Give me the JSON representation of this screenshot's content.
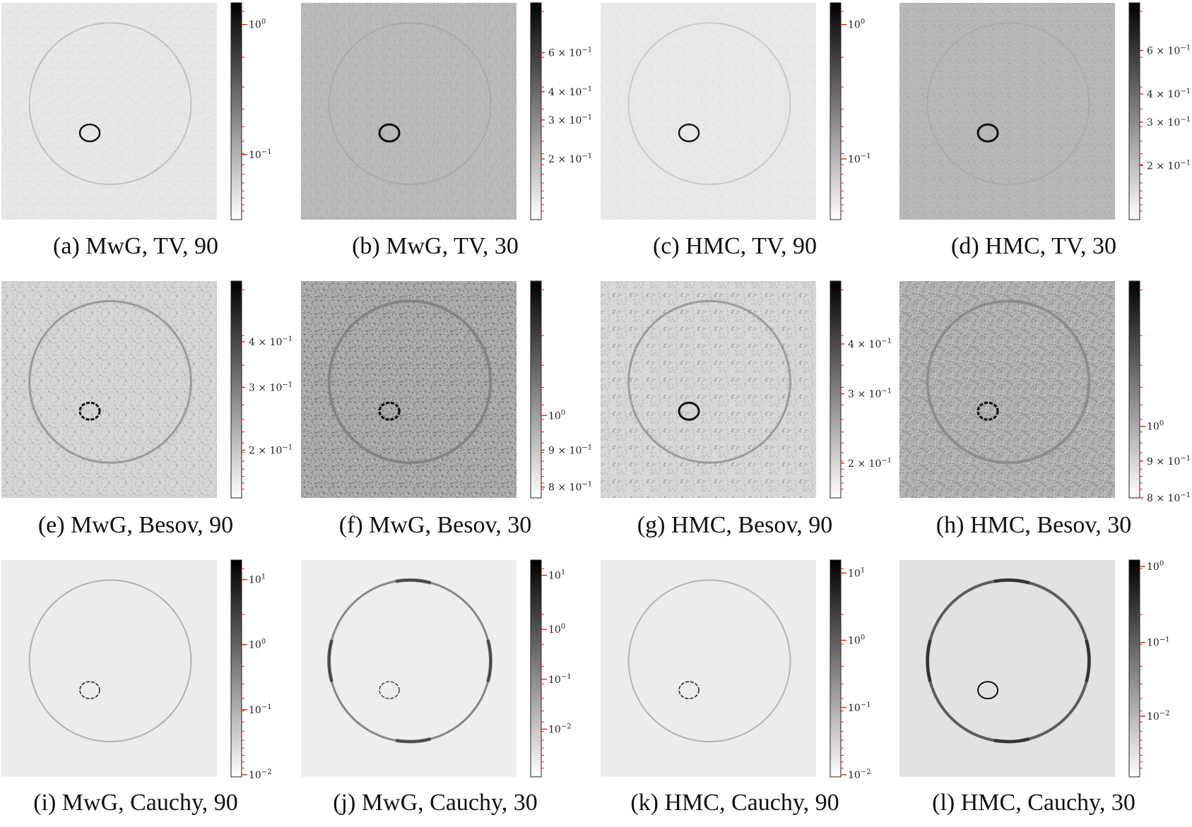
{
  "figure": {
    "panels": [
      {
        "label": "(a)",
        "caption": "(a) MwG, TV, 90",
        "background": "#e7e7e7",
        "noise": 0.03,
        "outer_ring_shade": "#b8b8b8",
        "outer_ring_width": 2,
        "inner_ring_shade": "#111111",
        "inner_ring_width": 2.4,
        "dashed_inner": false,
        "edge_arcs": false,
        "colorbar": {
          "scale": "log",
          "ticks": [
            {
              "label": "10^0",
              "frac": 0.9,
              "major": true
            },
            {
              "label": "10^-1",
              "frac": 0.3,
              "major": true
            }
          ]
        }
      },
      {
        "label": "(b)",
        "caption": "(b) MwG, TV, 30",
        "background": "#b9b9b9",
        "noise": 0.06,
        "outer_ring_shade": "#a5a5a5",
        "outer_ring_width": 2,
        "inner_ring_shade": "#111111",
        "inner_ring_width": 3,
        "dashed_inner": false,
        "edge_arcs": false,
        "colorbar": {
          "scale": "log",
          "ticks": [
            {
              "label": "6 × 10^-1",
              "frac": 0.77,
              "major": false
            },
            {
              "label": "4 × 10^-1",
              "frac": 0.59,
              "major": false
            },
            {
              "label": "3 × 10^-1",
              "frac": 0.46,
              "major": false
            },
            {
              "label": "2 × 10^-1",
              "frac": 0.28,
              "major": false
            }
          ]
        }
      },
      {
        "label": "(c)",
        "caption": "(c) HMC, TV, 90",
        "background": "#e9e9e9",
        "noise": 0.03,
        "outer_ring_shade": "#c2c2c2",
        "outer_ring_width": 2,
        "inner_ring_shade": "#151515",
        "inner_ring_width": 2.4,
        "dashed_inner": false,
        "edge_arcs": false,
        "colorbar": {
          "scale": "log",
          "ticks": [
            {
              "label": "10^0",
              "frac": 0.9,
              "major": true
            },
            {
              "label": "10^-1",
              "frac": 0.28,
              "major": true
            }
          ]
        }
      },
      {
        "label": "(d)",
        "caption": "(d) HMC, TV, 30",
        "background": "#b7b7b7",
        "noise": 0.06,
        "outer_ring_shade": "#a7a7a7",
        "outer_ring_width": 2,
        "inner_ring_shade": "#111111",
        "inner_ring_width": 3,
        "dashed_inner": false,
        "edge_arcs": false,
        "colorbar": {
          "scale": "log",
          "ticks": [
            {
              "label": "6 × 10^-1",
              "frac": 0.78,
              "major": false
            },
            {
              "label": "4 × 10^-1",
              "frac": 0.58,
              "major": false
            },
            {
              "label": "3 × 10^-1",
              "frac": 0.45,
              "major": false
            },
            {
              "label": "2 × 10^-1",
              "frac": 0.25,
              "major": false
            }
          ]
        }
      },
      {
        "label": "(e)",
        "caption": "(e) MwG, Besov, 90",
        "background": "#d4d4d4",
        "noise": 0.14,
        "outer_ring_shade": "#8c8c8c",
        "outer_ring_width": 3,
        "inner_ring_shade": "#111111",
        "inner_ring_width": 3,
        "dashed_inner": true,
        "edge_arcs": false,
        "colorbar": {
          "scale": "log",
          "ticks": [
            {
              "label": "4 × 10^-1",
              "frac": 0.72,
              "major": false
            },
            {
              "label": "3 × 10^-1",
              "frac": 0.51,
              "major": false
            },
            {
              "label": "2 × 10^-1",
              "frac": 0.22,
              "major": false
            }
          ]
        }
      },
      {
        "label": "(f)",
        "caption": "(f) MwG, Besov, 30",
        "background": "#a9a9a9",
        "noise": 0.22,
        "outer_ring_shade": "#7a7a7a",
        "outer_ring_width": 4,
        "inner_ring_shade": "#111111",
        "inner_ring_width": 3.4,
        "dashed_inner": true,
        "edge_arcs": false,
        "colorbar": {
          "scale": "log",
          "ticks": [
            {
              "label": "10^0",
              "frac": 0.38,
              "major": true
            },
            {
              "label": "9 × 10^-1",
              "frac": 0.22,
              "major": false
            },
            {
              "label": "8 × 10^-1",
              "frac": 0.05,
              "major": false
            }
          ]
        }
      },
      {
        "label": "(g)",
        "caption": "(g) HMC, Besov, 90",
        "background": "#d6d6d6",
        "noise": 0.14,
        "outer_ring_shade": "#8e8e8e",
        "outer_ring_width": 3,
        "inner_ring_shade": "#141414",
        "inner_ring_width": 3,
        "dashed_inner": false,
        "edge_arcs": false,
        "colorbar": {
          "scale": "log",
          "ticks": [
            {
              "label": "4 × 10^-1",
              "frac": 0.71,
              "major": false
            },
            {
              "label": "3 × 10^-1",
              "frac": 0.48,
              "major": false
            },
            {
              "label": "2 × 10^-1",
              "frac": 0.16,
              "major": false
            }
          ]
        }
      },
      {
        "label": "(h)",
        "caption": "(h) HMC, Besov, 30",
        "background": "#b0b0b0",
        "noise": 0.2,
        "outer_ring_shade": "#858585",
        "outer_ring_width": 4,
        "inner_ring_shade": "#181818",
        "inner_ring_width": 3.4,
        "dashed_inner": true,
        "edge_arcs": false,
        "colorbar": {
          "scale": "log",
          "ticks": [
            {
              "label": "10^0",
              "frac": 0.33,
              "major": true
            },
            {
              "label": "9 × 10^-1",
              "frac": 0.17,
              "major": false
            },
            {
              "label": "8 × 10^-1",
              "frac": 0.0,
              "major": false
            }
          ]
        }
      },
      {
        "label": "(i)",
        "caption": "(i) MwG, Cauchy, 90",
        "background": "#ececec",
        "noise": 0.0,
        "outer_ring_shade": "#a3a3a3",
        "outer_ring_width": 2,
        "inner_ring_shade": "#2a2a2a",
        "inner_ring_width": 1.6,
        "dashed_inner": true,
        "edge_arcs": false,
        "colorbar": {
          "scale": "log",
          "ticks": [
            {
              "label": "10^1",
              "frac": 0.91,
              "major": true
            },
            {
              "label": "10^0",
              "frac": 0.61,
              "major": true
            },
            {
              "label": "10^-1",
              "frac": 0.31,
              "major": true
            },
            {
              "label": "10^-2",
              "frac": 0.01,
              "major": true
            }
          ]
        }
      },
      {
        "label": "(j)",
        "caption": "(j) MwG, Cauchy, 30",
        "background": "#eeeeee",
        "noise": 0.0,
        "outer_ring_shade": "#6d6d6d",
        "outer_ring_width": 3,
        "inner_ring_shade": "#3a3a3a",
        "inner_ring_width": 1.4,
        "dashed_inner": true,
        "edge_arcs": true,
        "colorbar": {
          "scale": "log",
          "ticks": [
            {
              "label": "10^1",
              "frac": 0.93,
              "major": true
            },
            {
              "label": "10^0",
              "frac": 0.68,
              "major": true
            },
            {
              "label": "10^-1",
              "frac": 0.45,
              "major": true
            },
            {
              "label": "10^-2",
              "frac": 0.22,
              "major": true
            }
          ]
        }
      },
      {
        "label": "(k)",
        "caption": "(k) HMC, Cauchy, 90",
        "background": "#ececec",
        "noise": 0.0,
        "outer_ring_shade": "#a6a6a6",
        "outer_ring_width": 2,
        "inner_ring_shade": "#2a2a2a",
        "inner_ring_width": 1.6,
        "dashed_inner": true,
        "edge_arcs": false,
        "colorbar": {
          "scale": "log",
          "ticks": [
            {
              "label": "10^1",
              "frac": 0.94,
              "major": true
            },
            {
              "label": "10^0",
              "frac": 0.63,
              "major": true
            },
            {
              "label": "10^-1",
              "frac": 0.32,
              "major": true
            },
            {
              "label": "10^-2",
              "frac": 0.01,
              "major": true
            }
          ]
        }
      },
      {
        "label": "(l)",
        "caption": "(l) HMC, Cauchy, 30",
        "background": "#e2e2e2",
        "noise": 0.0,
        "outer_ring_shade": "#3c3c3c",
        "outer_ring_width": 4,
        "inner_ring_shade": "#111111",
        "inner_ring_width": 2,
        "dashed_inner": false,
        "edge_arcs": true,
        "colorbar": {
          "scale": "log",
          "ticks": [
            {
              "label": "10^0",
              "frac": 0.97,
              "major": true
            },
            {
              "label": "10^-1",
              "frac": 0.62,
              "major": true
            },
            {
              "label": "10^-2",
              "frac": 0.28,
              "major": true
            }
          ]
        }
      }
    ]
  }
}
